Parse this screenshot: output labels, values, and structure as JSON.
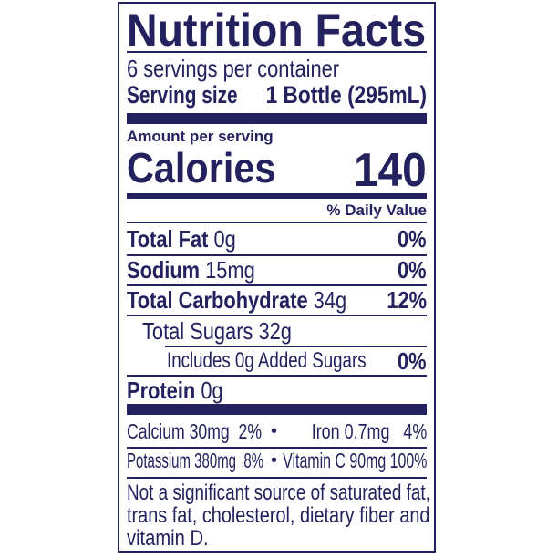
{
  "title": "Nutrition Facts",
  "servings_per_container": "6 servings per container",
  "serving_size": {
    "label": "Serving size",
    "value": "1 Bottle (295mL)"
  },
  "amount_per_serving": "Amount per serving",
  "calories": {
    "label": "Calories",
    "value": "140"
  },
  "daily_value_header": "% Daily Value",
  "nutrients": [
    {
      "name": "Total Fat",
      "amount": "0g",
      "dv": "0%"
    },
    {
      "name": "Sodium",
      "amount": "15mg",
      "dv": "0%"
    },
    {
      "name": "Total Carbohydrate",
      "amount": "34g",
      "dv": "12%"
    },
    {
      "name": "Total Sugars 32g",
      "amount": "",
      "dv": ""
    },
    {
      "name": "Includes 0g Added Sugars",
      "amount": "",
      "dv": "0%"
    },
    {
      "name": "Protein",
      "amount": "0g",
      "dv": ""
    }
  ],
  "vitamins": [
    {
      "left": "Calcium 30mg  2%",
      "right": "Iron 0.7mg   4%"
    },
    {
      "left": "Potassium 380mg  8%",
      "right": "Vitamin C 90mg 100%"
    }
  ],
  "separator": "•",
  "footnote": [
    "Not a significant source of saturated fat,",
    "trans fat, cholesterol, dietary fiber and",
    "vitamin D."
  ],
  "colors": {
    "ink": "#23215e",
    "background": "#ffffff"
  }
}
